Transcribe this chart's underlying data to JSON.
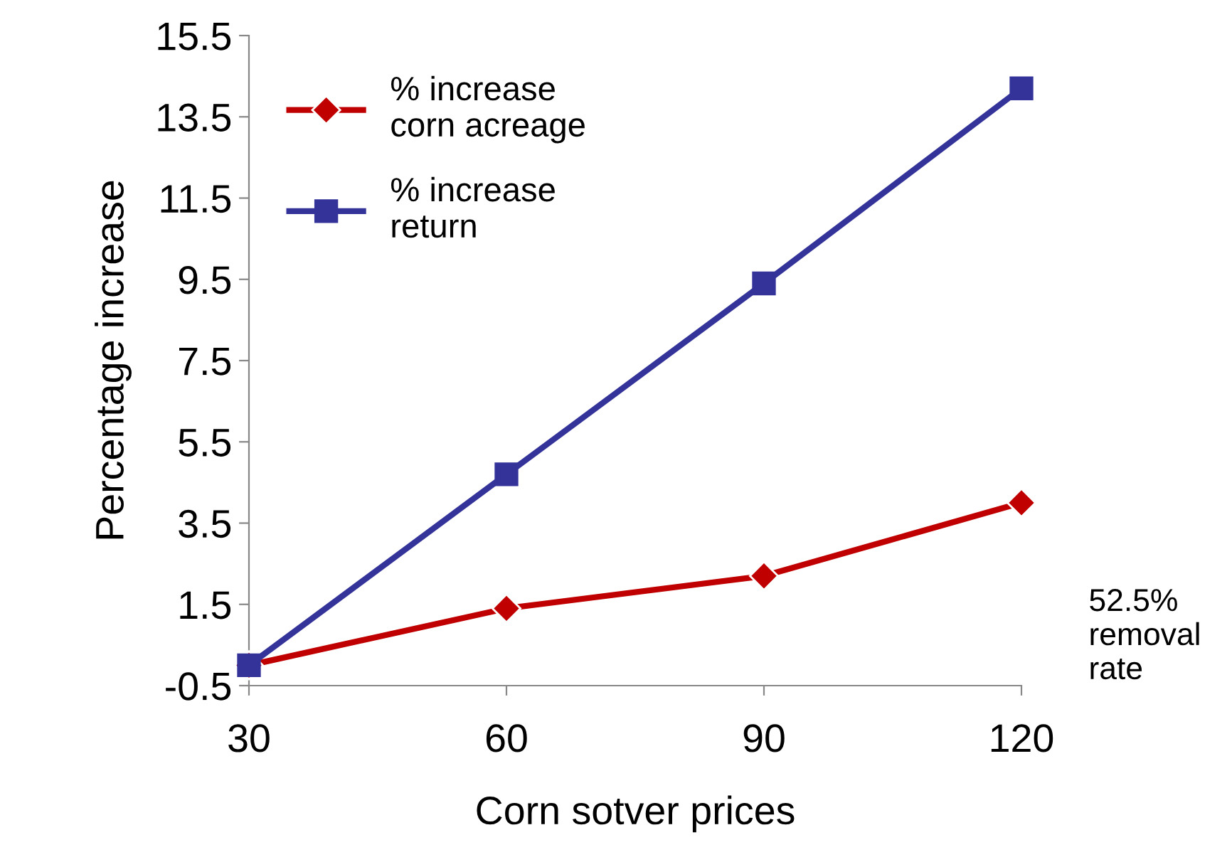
{
  "chart_data": {
    "type": "line",
    "xlabel": "Corn sotver prices",
    "ylabel": "Percentage increase",
    "x": [
      30,
      60,
      90,
      120
    ],
    "xlim": [
      30,
      120
    ],
    "xticks": [
      30,
      60,
      90,
      120
    ],
    "ylim": [
      -0.5,
      15.5
    ],
    "yticks": [
      -0.5,
      1.5,
      3.5,
      5.5,
      7.5,
      9.5,
      11.5,
      13.5,
      15.5
    ],
    "series": [
      {
        "name": "% increase\ncorn acreage",
        "color": "#c00000",
        "values": [
          0,
          1.4,
          2.2,
          4.0
        ],
        "marker": "diamond"
      },
      {
        "name": "% increase\nreturn",
        "color": "#333399",
        "values": [
          0,
          4.7,
          9.4,
          14.2
        ],
        "marker": "square"
      }
    ],
    "legend": "top left",
    "grid": false,
    "annotations": [
      "52.5%\nremoval\nrate"
    ]
  }
}
